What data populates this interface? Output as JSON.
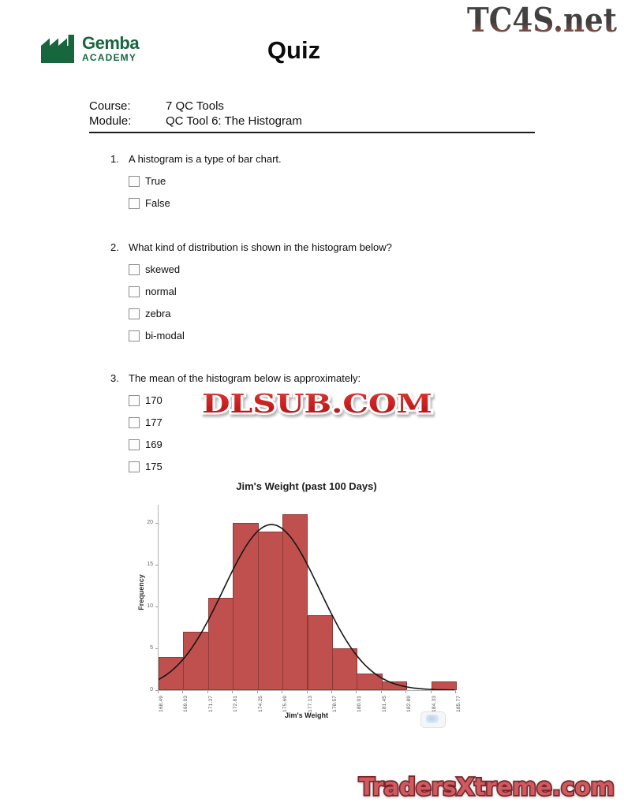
{
  "header": {
    "logo_name": "Gemba",
    "logo_sub": "ACADEMY",
    "logo_icon": "factory-icon",
    "title": "Quiz",
    "top_watermark": "TC4S.net"
  },
  "meta": {
    "course_label": "Course:",
    "course_value": "7 QC Tools",
    "module_label": "Module:",
    "module_value": "QC Tool 6: The Histogram"
  },
  "questions": [
    {
      "number": "1.",
      "text": "A histogram is a type of bar chart.",
      "options": [
        "True",
        "False"
      ]
    },
    {
      "number": "2.",
      "text": "What kind of distribution is shown in the histogram below?",
      "options": [
        "skewed",
        "normal",
        "zebra",
        "bi-modal"
      ]
    },
    {
      "number": "3.",
      "text": "The mean of the histogram below is approximately:",
      "options": [
        "170",
        "177",
        "169",
        "175"
      ]
    }
  ],
  "watermarks": {
    "middle": "DLSUB.COM",
    "bottom": "TradersXtreme.com"
  },
  "chart_data": {
    "type": "bar",
    "title": "Jim's Weight (past 100 Days)",
    "xlabel": "Jim's Weight",
    "ylabel": "Frequency",
    "bin_edges": [
      168.49,
      169.93,
      171.37,
      172.81,
      174.25,
      175.69,
      177.13,
      178.57,
      180.01,
      181.45,
      182.89,
      184.33,
      185.77
    ],
    "values": [
      4,
      7,
      11,
      20,
      19,
      21,
      9,
      5,
      2,
      1,
      0,
      1
    ],
    "ylim": [
      0,
      20
    ],
    "yticks": [
      0,
      5,
      10,
      15,
      20
    ],
    "overlay_curve": {
      "type": "normal",
      "mean": 175.05,
      "sd": 2.8,
      "peak": 19.8
    },
    "bar_color": "#c0504d",
    "bar_border_color": "#8e3b38",
    "curve_color": "#161616",
    "grid": false,
    "legend": "none"
  },
  "colors": {
    "brand_green": "#17663e",
    "watermark_red": "#c6201f",
    "bottom_watermark_fill": "#d05a60",
    "bottom_watermark_outline": "#76262c"
  }
}
